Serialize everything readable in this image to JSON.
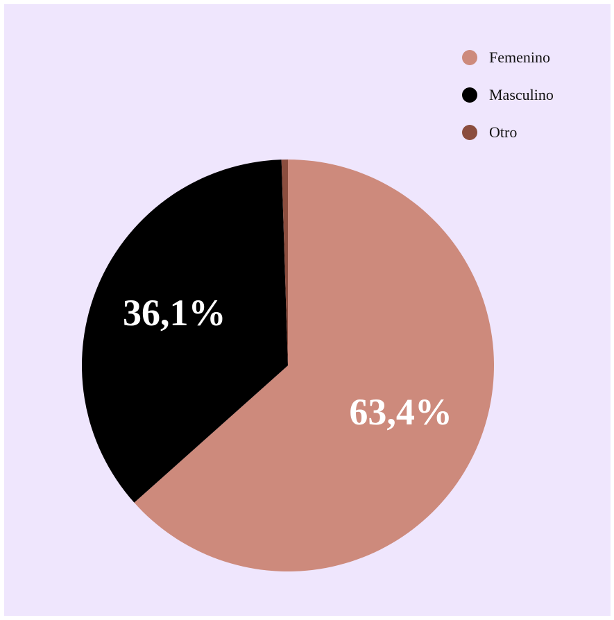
{
  "chart_data": {
    "type": "pie",
    "title": "",
    "legend_position": "top-right",
    "slices": [
      {
        "label": "Femenino",
        "value": 63.4,
        "display": "63,4%",
        "color": "#cd8a7c"
      },
      {
        "label": "Masculino",
        "value": 36.1,
        "display": "36,1%",
        "color": "#000000"
      },
      {
        "label": "Otro",
        "value": 0.5,
        "display": "",
        "color": "#8b4d3e"
      }
    ]
  },
  "colors": {
    "background": "#efe6fd",
    "label_text": "#ffffff"
  }
}
